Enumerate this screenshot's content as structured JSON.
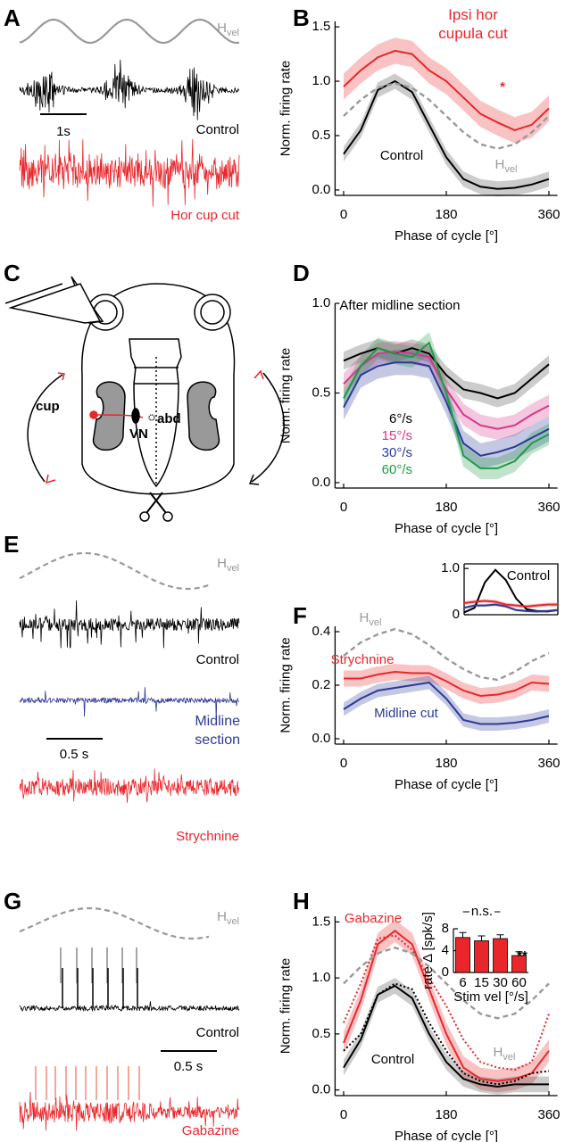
{
  "panel_labels": [
    "A",
    "B",
    "C",
    "D",
    "E",
    "F",
    "G",
    "H"
  ],
  "hvel": {
    "main": "H",
    "sub": "vel"
  },
  "panel_a": {
    "scale_bar": "1s",
    "trace_labels": [
      "Control",
      "Hor cup cut"
    ]
  },
  "panel_c": {
    "labels": [
      "cup",
      "VN",
      "abd"
    ]
  },
  "panel_e": {
    "scale_bar": "0.5 s",
    "trace_labels": [
      "Control",
      "Midline section",
      "Strychnine"
    ]
  },
  "panel_g": {
    "scale_bar": "0.5 s",
    "trace_labels": [
      "Control",
      "Gabazine"
    ]
  },
  "chart_data": [
    {
      "type": "line",
      "xlabel": "Phase of cycle [°]",
      "ylabel": "Norm. firing rate",
      "x": [
        0,
        30,
        60,
        90,
        120,
        150,
        180,
        210,
        240,
        270,
        300,
        330,
        360
      ],
      "xlim": [
        -15,
        375
      ],
      "xticks": [
        0,
        180,
        360
      ],
      "ylim": [
        -0.05,
        1.55
      ],
      "yticks": [
        {
          "value": 0,
          "label": "0.0"
        },
        0.5,
        {
          "value": 1,
          "label": "1.0"
        },
        1.5
      ],
      "series": [
        {
          "name": "Ipsi hor cupula cut",
          "color": "#e8262b",
          "style": "solid",
          "values": [
            0.95,
            1.1,
            1.22,
            1.28,
            1.25,
            1.1,
            1.0,
            0.85,
            0.7,
            0.62,
            0.55,
            0.6,
            0.75
          ],
          "errors": [
            0.12,
            0.12,
            0.12,
            0.12,
            0.12,
            0.12,
            0.12,
            0.12,
            0.12,
            0.12,
            0.12,
            0.12,
            0.12
          ]
        },
        {
          "name": "Control",
          "color": "#000000",
          "style": "solid",
          "values": [
            0.33,
            0.55,
            0.92,
            1.0,
            0.9,
            0.6,
            0.3,
            0.1,
            0.03,
            0.01,
            0.02,
            0.05,
            0.1
          ],
          "errors": [
            0.07,
            0.07,
            0.07,
            0.07,
            0.07,
            0.07,
            0.07,
            0.07,
            0.07,
            0.07,
            0.07,
            0.07,
            0.07
          ]
        },
        {
          "name": "H",
          "name_sub": "vel",
          "color": "#999999",
          "style": "dashed",
          "values": [
            0.68,
            0.83,
            0.94,
            0.98,
            0.94,
            0.83,
            0.68,
            0.53,
            0.42,
            0.38,
            0.42,
            0.53,
            0.68
          ]
        }
      ],
      "annotations": [
        {
          "text": "*",
          "color": "#e8262b"
        }
      ]
    },
    {
      "type": "line",
      "title": "After midline section",
      "xlabel": "Phase of cycle [°]",
      "ylabel": "Norm. firing rate",
      "x": [
        0,
        30,
        60,
        90,
        120,
        150,
        180,
        210,
        240,
        270,
        300,
        330,
        360
      ],
      "xlim": [
        -15,
        375
      ],
      "xticks": [
        0,
        180,
        360
      ],
      "ylim": [
        -0.03,
        1.0
      ],
      "yticks": [
        {
          "value": 0,
          "label": "0.0"
        },
        0.5,
        {
          "value": 1,
          "label": "1.0"
        }
      ],
      "series": [
        {
          "name": "6°/s",
          "color": "#000000",
          "style": "solid",
          "values": [
            0.68,
            0.72,
            0.75,
            0.72,
            0.75,
            0.72,
            0.6,
            0.52,
            0.5,
            0.47,
            0.5,
            0.58,
            0.66
          ],
          "errors": [
            0.05,
            0.05,
            0.05,
            0.05,
            0.05,
            0.05,
            0.05,
            0.05,
            0.05,
            0.05,
            0.05,
            0.05,
            0.05
          ]
        },
        {
          "name": "15°/s",
          "color": "#d6378a",
          "style": "solid",
          "values": [
            0.55,
            0.65,
            0.72,
            0.73,
            0.72,
            0.7,
            0.52,
            0.38,
            0.32,
            0.3,
            0.32,
            0.38,
            0.43
          ],
          "errors": [
            0.06,
            0.06,
            0.06,
            0.06,
            0.06,
            0.06,
            0.06,
            0.06,
            0.06,
            0.06,
            0.06,
            0.06,
            0.06
          ]
        },
        {
          "name": "30°/s",
          "color": "#2b3a96",
          "style": "solid",
          "values": [
            0.42,
            0.6,
            0.65,
            0.67,
            0.67,
            0.65,
            0.45,
            0.22,
            0.15,
            0.17,
            0.2,
            0.25,
            0.3
          ],
          "errors": [
            0.07,
            0.07,
            0.07,
            0.07,
            0.07,
            0.07,
            0.07,
            0.07,
            0.07,
            0.07,
            0.07,
            0.07,
            0.07
          ]
        },
        {
          "name": "60°/s",
          "color": "#1f9a48",
          "style": "solid",
          "values": [
            0.47,
            0.65,
            0.75,
            0.72,
            0.7,
            0.78,
            0.5,
            0.15,
            0.08,
            0.08,
            0.12,
            0.22,
            0.27
          ],
          "errors": [
            0.06,
            0.06,
            0.06,
            0.06,
            0.06,
            0.06,
            0.06,
            0.06,
            0.06,
            0.06,
            0.06,
            0.06,
            0.06
          ]
        }
      ]
    },
    {
      "type": "line",
      "xlabel": "Phase of cycle [°]",
      "ylabel": "Norm. firing rate",
      "x": [
        0,
        30,
        60,
        90,
        120,
        150,
        180,
        210,
        240,
        270,
        300,
        330,
        360
      ],
      "xlim": [
        -15,
        375
      ],
      "xticks": [
        0,
        180,
        360
      ],
      "ylim": [
        -0.02,
        0.42
      ],
      "yticks": [
        {
          "value": 0,
          "label": "0.0"
        },
        0.2,
        0.4
      ],
      "series": [
        {
          "name": "H",
          "name_sub": "vel",
          "color": "#999999",
          "style": "dashed",
          "values": [
            0.31,
            0.36,
            0.39,
            0.41,
            0.39,
            0.35,
            0.3,
            0.26,
            0.23,
            0.22,
            0.25,
            0.29,
            0.32
          ]
        },
        {
          "name": "Strychnine",
          "color": "#e8262b",
          "style": "solid",
          "values": [
            0.225,
            0.225,
            0.24,
            0.25,
            0.245,
            0.245,
            0.215,
            0.18,
            0.16,
            0.165,
            0.18,
            0.21,
            0.205
          ],
          "errors": [
            0.03,
            0.03,
            0.03,
            0.03,
            0.03,
            0.03,
            0.03,
            0.03,
            0.03,
            0.03,
            0.03,
            0.03,
            0.03
          ]
        },
        {
          "name": "Midline cut",
          "color": "#2b3a96",
          "style": "solid",
          "values": [
            0.11,
            0.15,
            0.18,
            0.19,
            0.2,
            0.21,
            0.15,
            0.07,
            0.055,
            0.055,
            0.06,
            0.07,
            0.085
          ],
          "errors": [
            0.025,
            0.025,
            0.025,
            0.025,
            0.025,
            0.025,
            0.025,
            0.025,
            0.025,
            0.025,
            0.025,
            0.025,
            0.025
          ]
        }
      ]
    },
    {
      "type": "line",
      "x": [
        0,
        40,
        80,
        120,
        160,
        200,
        240,
        280,
        320,
        360
      ],
      "xlim": [
        0,
        360
      ],
      "ylim": [
        0,
        1.1
      ],
      "yticks": [
        0,
        {
          "value": 1,
          "label": "1.0"
        }
      ],
      "series": [
        {
          "name": "Control",
          "color": "#000000",
          "style": "solid",
          "values": [
            0.05,
            0.15,
            0.7,
            0.97,
            0.75,
            0.35,
            0.12,
            0.08,
            0.07,
            0.1
          ]
        },
        {
          "color": "#e8262b",
          "style": "solid",
          "values": [
            0.25,
            0.28,
            0.3,
            0.28,
            0.22,
            0.2,
            0.18,
            0.2,
            0.22,
            0.22
          ],
          "errors": [
            0.04,
            0.04,
            0.04,
            0.04,
            0.04,
            0.04,
            0.04,
            0.04,
            0.04,
            0.04
          ]
        },
        {
          "color": "#2b3a96",
          "style": "solid",
          "values": [
            0.15,
            0.2,
            0.2,
            0.22,
            0.18,
            0.1,
            0.08,
            0.07,
            0.08,
            0.1
          ],
          "errors": [
            0.03,
            0.03,
            0.03,
            0.03,
            0.03,
            0.03,
            0.03,
            0.03,
            0.03,
            0.03
          ]
        }
      ]
    },
    {
      "type": "line",
      "xlabel": "Phase of cycle [°]",
      "ylabel": "Norm. firing rate",
      "x": [
        0,
        30,
        60,
        90,
        120,
        150,
        180,
        210,
        240,
        270,
        300,
        330,
        360
      ],
      "xlim": [
        -15,
        375
      ],
      "xticks": [
        0,
        180,
        360
      ],
      "ylim": [
        -0.05,
        1.55
      ],
      "yticks": [
        {
          "value": 0,
          "label": "0.0"
        },
        0.5,
        {
          "value": 1,
          "label": "1.0"
        },
        1.5
      ],
      "series": [
        {
          "name": "Gabazine",
          "color": "#e8262b",
          "style": "solid",
          "values": [
            0.42,
            0.8,
            1.3,
            1.42,
            1.3,
            0.9,
            0.5,
            0.2,
            0.1,
            0.08,
            0.1,
            0.15,
            0.35
          ],
          "errors": [
            0.1,
            0.1,
            0.1,
            0.1,
            0.1,
            0.1,
            0.1,
            0.1,
            0.1,
            0.1,
            0.1,
            0.1,
            0.1
          ]
        },
        {
          "color": "#e8262b",
          "style": "dotted",
          "values": [
            0.6,
            0.95,
            1.35,
            1.38,
            1.25,
            1.0,
            0.75,
            0.45,
            0.25,
            0.2,
            0.18,
            0.25,
            0.68
          ]
        },
        {
          "name": "Control",
          "color": "#000000",
          "style": "solid",
          "values": [
            0.2,
            0.45,
            0.85,
            0.93,
            0.82,
            0.5,
            0.25,
            0.1,
            0.05,
            0.03,
            0.05,
            0.05,
            0.05
          ],
          "errors": [
            0.07,
            0.07,
            0.07,
            0.07,
            0.07,
            0.07,
            0.07,
            0.07,
            0.07,
            0.07,
            0.07,
            0.07,
            0.07
          ]
        },
        {
          "color": "#000000",
          "style": "dotted",
          "values": [
            0.35,
            0.5,
            0.85,
            0.95,
            0.9,
            0.6,
            0.35,
            0.15,
            0.08,
            0.05,
            0.08,
            0.15,
            0.17
          ]
        },
        {
          "name": "H",
          "name_sub": "vel",
          "color": "#999999",
          "style": "dashed",
          "values": [
            0.95,
            1.1,
            1.22,
            1.27,
            1.22,
            1.1,
            0.95,
            0.8,
            0.68,
            0.64,
            0.68,
            0.8,
            0.95
          ]
        }
      ]
    },
    {
      "type": "bar",
      "xlabel": "Stim vel [°/s]",
      "ylabel": "rate Δ [spk/s]",
      "categories": [
        "6",
        "15",
        "30",
        "60"
      ],
      "values": [
        6.4,
        5.8,
        6.2,
        3.1
      ],
      "errors": [
        0.9,
        0.9,
        0.7,
        0.7
      ],
      "color": "#e8262b",
      "ylim": [
        0,
        8
      ],
      "yticks": [
        0,
        4,
        8
      ],
      "annotations": [
        {
          "text": "n.s."
        },
        {
          "text": "**"
        }
      ]
    }
  ]
}
